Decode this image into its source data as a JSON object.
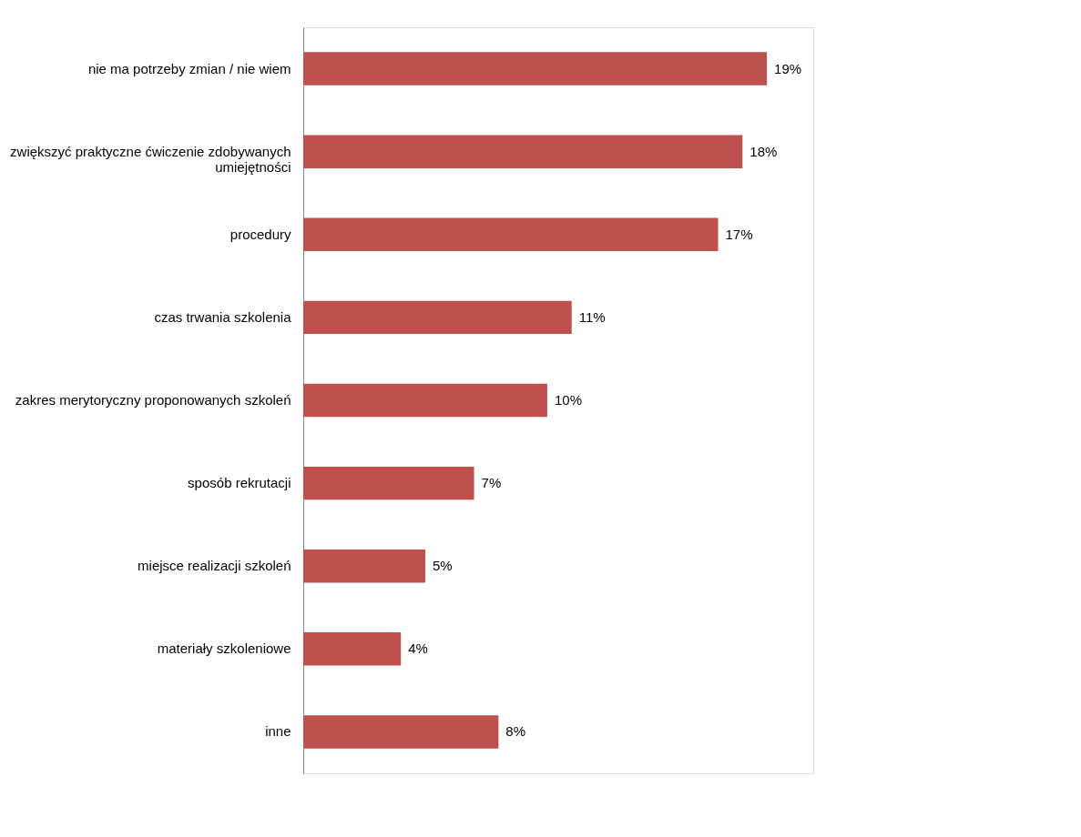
{
  "chart_data": {
    "type": "bar",
    "orientation": "horizontal",
    "data_labels": true,
    "color": "#c0504d",
    "categories": [
      "nie ma potrzeby zmian / nie wiem",
      "zwiększyć praktyczne ćwiczenie zdobywanych umiejętności",
      "procedury",
      "czas trwania szkolenia",
      "zakres merytoryczny proponowanych szkoleń",
      "sposób rekrutacji",
      "miejsce realizacji szkoleń",
      "materiały szkoleniowe",
      "inne"
    ],
    "values": [
      19,
      18,
      17,
      11,
      10,
      7,
      5,
      4,
      8
    ],
    "value_labels": [
      "19%",
      "18%",
      "17%",
      "11%",
      "10%",
      "7%",
      "5%",
      "4%",
      "8%"
    ]
  }
}
